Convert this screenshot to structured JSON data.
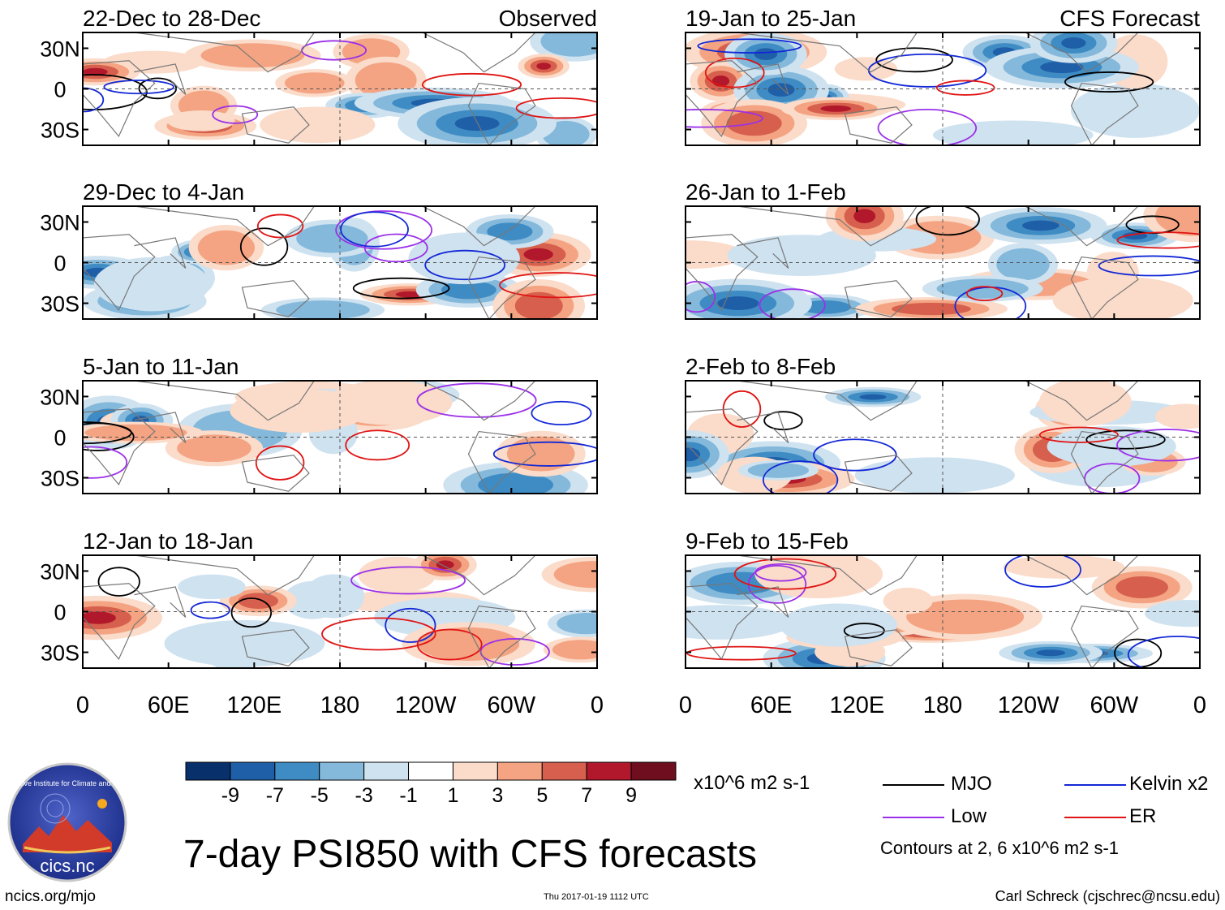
{
  "chart_data": {
    "type": "heatmap",
    "title": "7-day PSI850 with CFS forecasts",
    "units": "x10^6 m2 s-1",
    "y_ticks": [
      "30N",
      "0",
      "30S"
    ],
    "x_ticks": [
      "0",
      "60E",
      "120E",
      "180",
      "120W",
      "60W",
      "0"
    ],
    "observed_label": "Observed",
    "forecast_label": "CFS Forecast",
    "panels": [
      {
        "period": "22-Dec to 28-Dec",
        "column": "left"
      },
      {
        "period": "29-Dec to 4-Jan",
        "column": "left"
      },
      {
        "period": "5-Jan to 11-Jan",
        "column": "left"
      },
      {
        "period": "12-Jan to 18-Jan",
        "column": "left"
      },
      {
        "period": "19-Jan to 25-Jan",
        "column": "right"
      },
      {
        "period": "26-Jan to 1-Feb",
        "column": "right"
      },
      {
        "period": "2-Feb to 8-Feb",
        "column": "right"
      },
      {
        "period": "9-Feb to 15-Feb",
        "column": "right"
      }
    ],
    "colorbar": {
      "labels": [
        "-9",
        "-7",
        "-5",
        "-3",
        "-1",
        "1",
        "3",
        "5",
        "7",
        "9"
      ],
      "colors": [
        "#08306b",
        "#1f5fa8",
        "#3f8cc4",
        "#84b9db",
        "#cfe2f0",
        "#ffffff",
        "#fbdbc9",
        "#f4a482",
        "#d6604d",
        "#b2182b",
        "#6e0e1e"
      ]
    },
    "legend": [
      {
        "name": "MJO",
        "color": "#000000"
      },
      {
        "name": "Low",
        "color": "#9b30e8"
      },
      {
        "name": "Kelvin x2",
        "color": "#1328d6"
      },
      {
        "name": "ER",
        "color": "#e01414"
      }
    ],
    "contour_note": "Contours at 2, 6 x10^6 m2 s-1"
  },
  "footer": {
    "left": "ncics.org/mjo",
    "timestamp": "Thu 2017-01-19 1112 UTC",
    "credit": "Carl Schreck (cjschrec@ncsu.edu)"
  },
  "logo": {
    "ring_text": "Cooperative Institute for Climate and Satellites",
    "name": "cics.nc"
  }
}
